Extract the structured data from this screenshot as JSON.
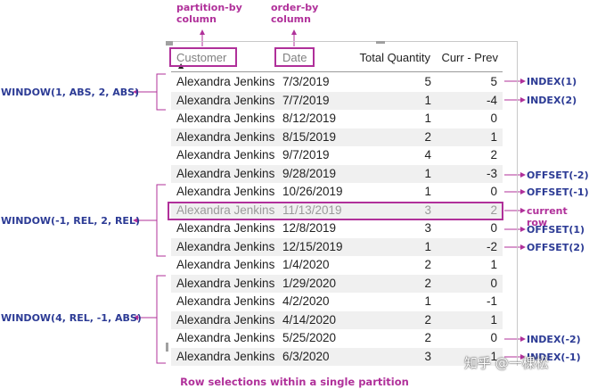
{
  "top_labels": {
    "partition_by": [
      "partition-by",
      "column"
    ],
    "order_by": [
      "order-by",
      "column"
    ]
  },
  "table": {
    "headers": {
      "customer": "Customer",
      "date": "Date",
      "total_quantity": "Total Quantity",
      "curr_prev": "Curr - Prev"
    },
    "rows": [
      {
        "customer": "Alexandra Jenkins",
        "date": "7/3/2019",
        "quantity": "5",
        "diff": "5"
      },
      {
        "customer": "Alexandra Jenkins",
        "date": "7/7/2019",
        "quantity": "1",
        "diff": "-4"
      },
      {
        "customer": "Alexandra Jenkins",
        "date": "8/12/2019",
        "quantity": "1",
        "diff": "0"
      },
      {
        "customer": "Alexandra Jenkins",
        "date": "8/15/2019",
        "quantity": "2",
        "diff": "1"
      },
      {
        "customer": "Alexandra Jenkins",
        "date": "9/7/2019",
        "quantity": "4",
        "diff": "2"
      },
      {
        "customer": "Alexandra Jenkins",
        "date": "9/28/2019",
        "quantity": "1",
        "diff": "-3"
      },
      {
        "customer": "Alexandra Jenkins",
        "date": "10/26/2019",
        "quantity": "1",
        "diff": "0"
      },
      {
        "customer": "Alexandra Jenkins",
        "date": "11/13/2019",
        "quantity": "3",
        "diff": "2"
      },
      {
        "customer": "Alexandra Jenkins",
        "date": "12/8/2019",
        "quantity": "3",
        "diff": "0"
      },
      {
        "customer": "Alexandra Jenkins",
        "date": "12/15/2019",
        "quantity": "1",
        "diff": "-2"
      },
      {
        "customer": "Alexandra Jenkins",
        "date": "1/4/2020",
        "quantity": "2",
        "diff": "1"
      },
      {
        "customer": "Alexandra Jenkins",
        "date": "1/29/2020",
        "quantity": "2",
        "diff": "0"
      },
      {
        "customer": "Alexandra Jenkins",
        "date": "4/2/2020",
        "quantity": "1",
        "diff": "-1"
      },
      {
        "customer": "Alexandra Jenkins",
        "date": "4/14/2020",
        "quantity": "2",
        "diff": "1"
      },
      {
        "customer": "Alexandra Jenkins",
        "date": "5/25/2020",
        "quantity": "2",
        "diff": "0"
      },
      {
        "customer": "Alexandra Jenkins",
        "date": "6/3/2020",
        "quantity": "3",
        "diff": "1"
      }
    ]
  },
  "left_labels": {
    "window_abs": "WINDOW(1, ABS, 2, ABS)",
    "window_rel": "WINDOW(-1, REL, 2, REL)",
    "window_mixed": "WINDOW(4, REL, -1, ABS)"
  },
  "right_labels": {
    "index_1": "INDEX(1)",
    "index_2": "INDEX(2)",
    "offset_m2": "OFFSET(-2)",
    "offset_m1": "OFFSET(-1)",
    "current_row": "current row",
    "offset_1": "OFFSET(1)",
    "offset_2": "OFFSET(2)",
    "index_m2": "INDEX(-2)",
    "index_m1": "INDEX(-1)"
  },
  "caption": "Row selections within a single partition",
  "watermark": "知乎 @一棵松",
  "colors": {
    "pink": "#b0309a",
    "navy": "#2c3b95",
    "header_muted": "#808080",
    "row_shade": "#f0f0f0"
  }
}
